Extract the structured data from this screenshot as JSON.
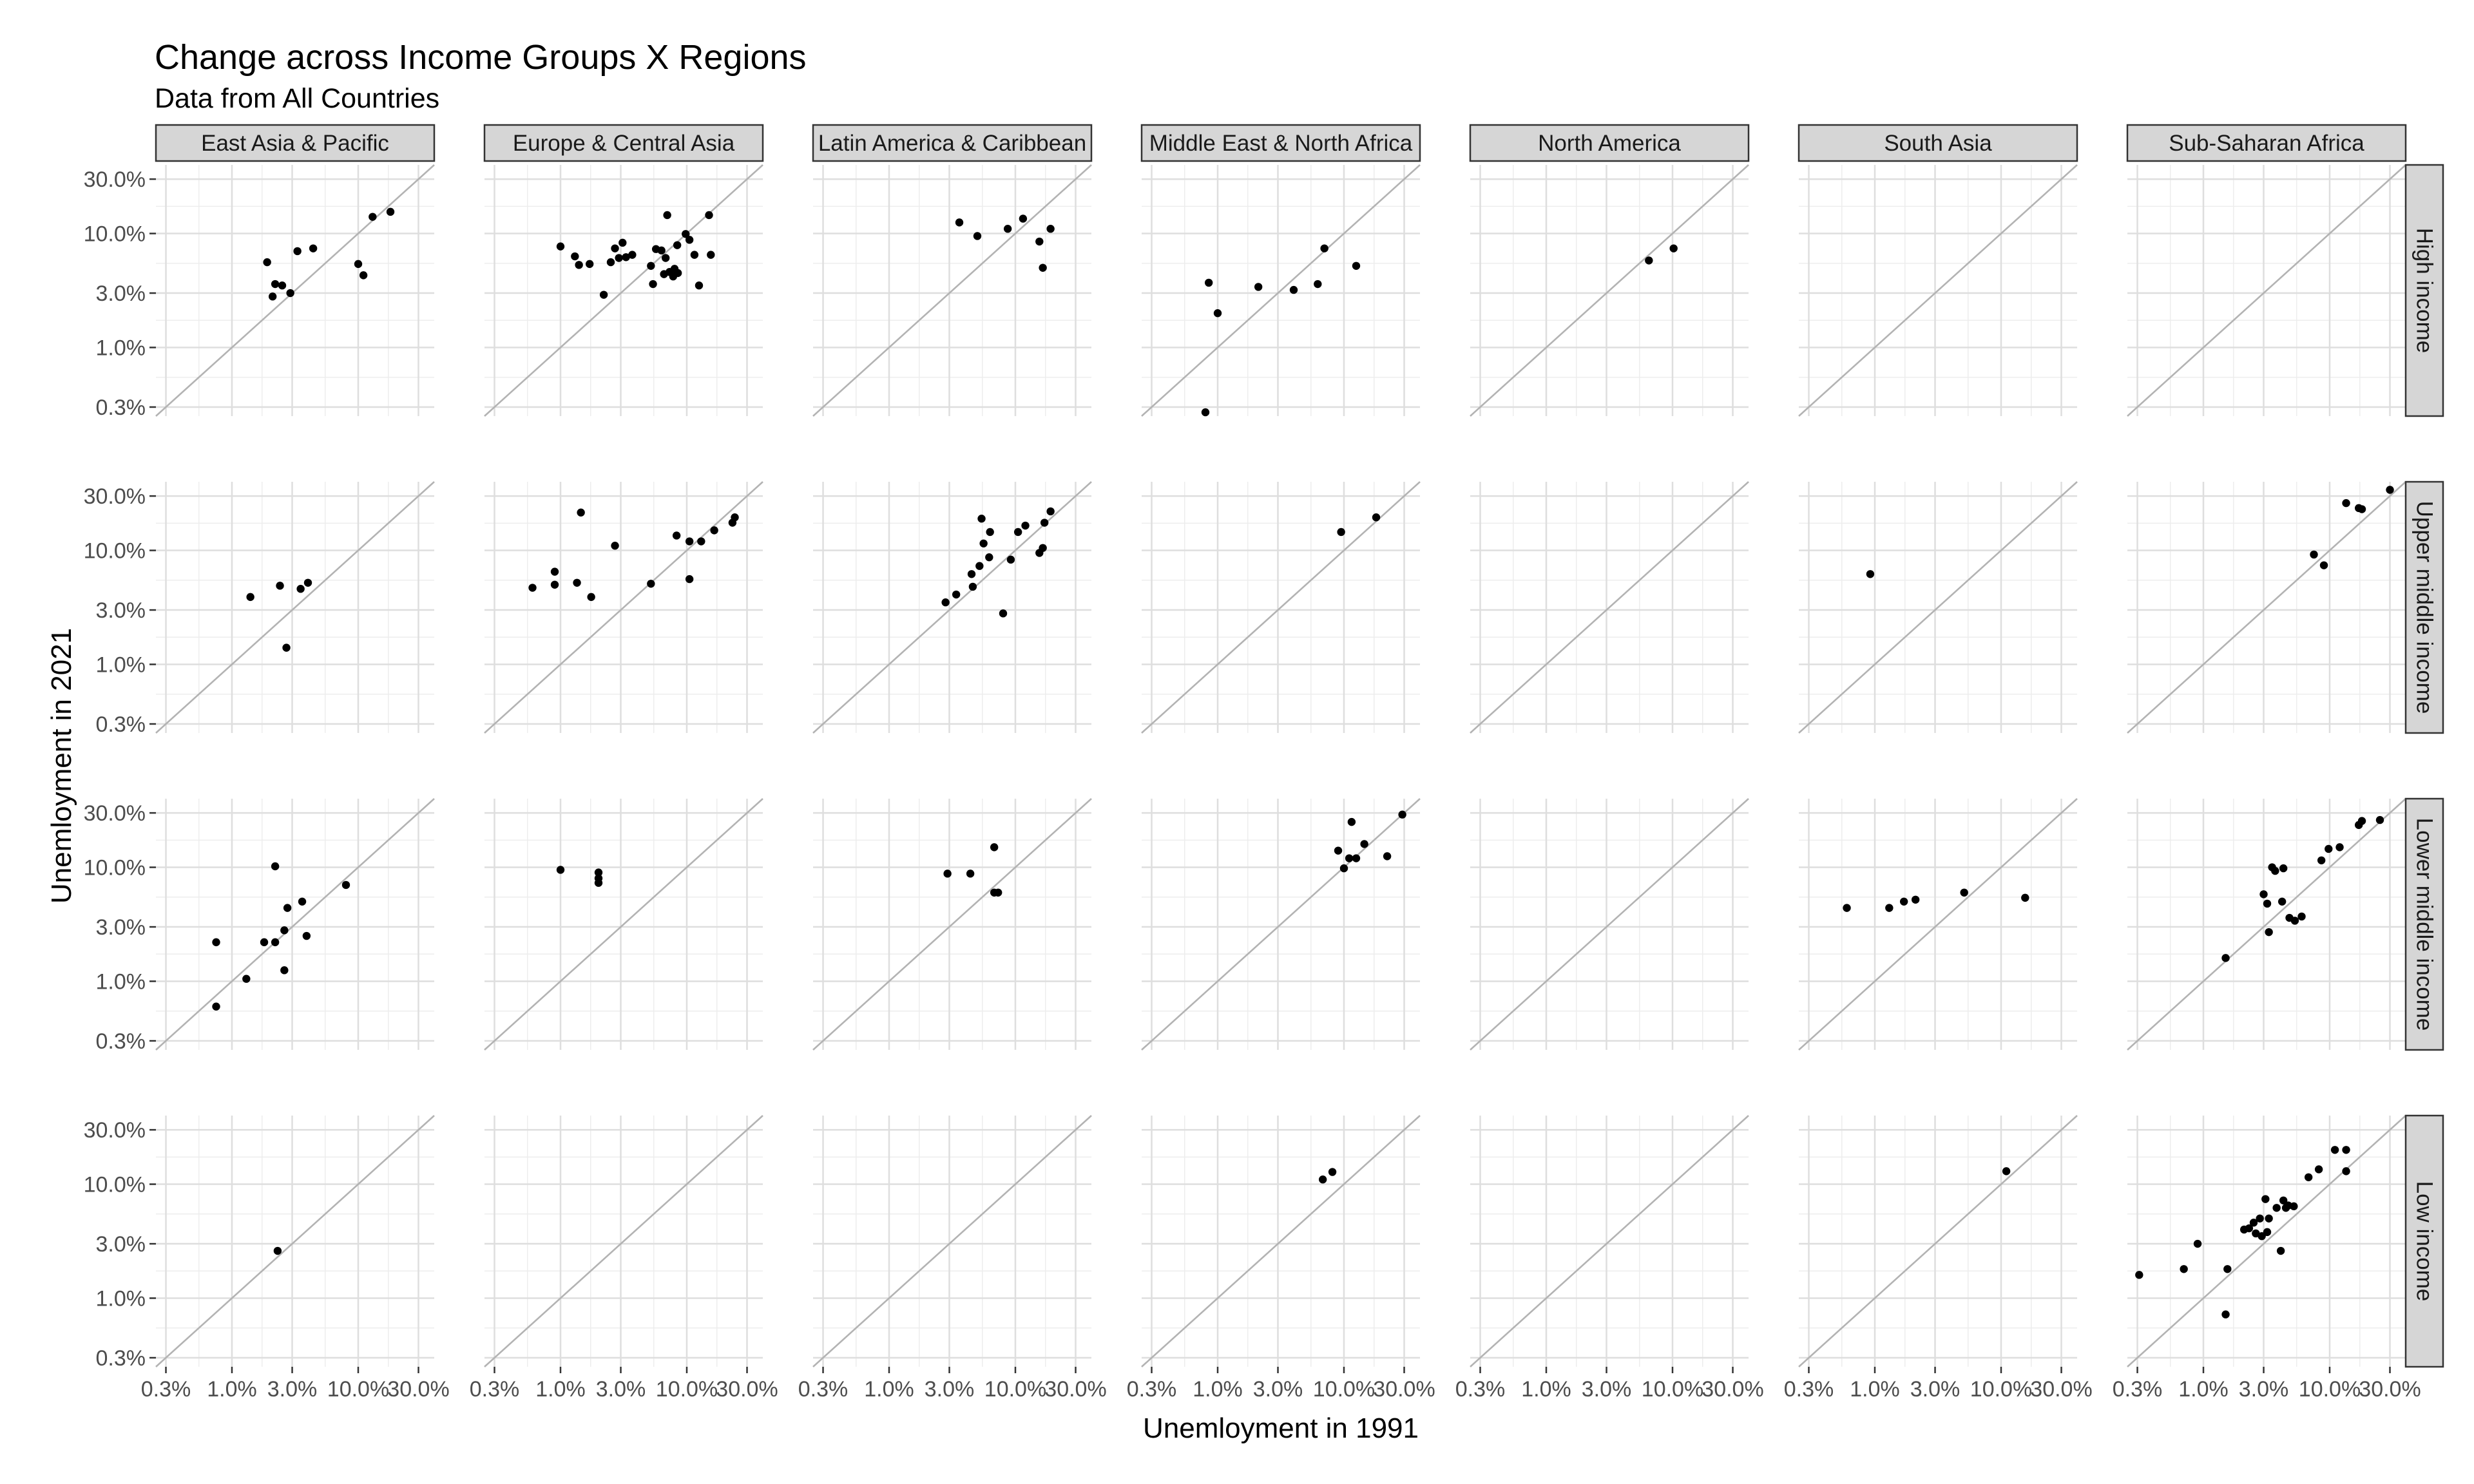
{
  "chart_data": {
    "type": "scatter",
    "title": "Change across Income Groups X Regions",
    "subtitle": "Data from All Countries",
    "xlabel": "Unemloyment in 1991",
    "ylabel": "Unemloyment in 2021",
    "x_scale": "log10",
    "y_scale": "log10",
    "xlim": [
      0.25,
      40
    ],
    "ylim": [
      0.25,
      40
    ],
    "x_ticks": [
      "0.3%",
      "1.0%",
      "3.0%",
      "10.0%",
      "30.0%"
    ],
    "y_ticks": [
      "30.0%",
      "10.0%",
      "3.0%",
      "1.0%",
      "0.3%"
    ],
    "tick_values": [
      0.3,
      1,
      3,
      10,
      30
    ],
    "reference_line": "y = x",
    "grid": true,
    "columns": [
      "East Asia & Pacific",
      "Europe & Central Asia",
      "Latin America & Caribbean",
      "Middle East & North Africa",
      "North America",
      "South Asia",
      "Sub-Saharan Africa"
    ],
    "rows": [
      "High income",
      "Upper middle income",
      "Lower middle income",
      "Low income"
    ],
    "panels": [
      {
        "row": 0,
        "col": 0,
        "points": [
          [
            1.9,
            5.6
          ],
          [
            2.1,
            2.8
          ],
          [
            2.2,
            3.6
          ],
          [
            2.5,
            3.5
          ],
          [
            2.9,
            3.0
          ],
          [
            3.3,
            7.0
          ],
          [
            4.4,
            7.4
          ],
          [
            10,
            5.4
          ],
          [
            11,
            4.3
          ],
          [
            13,
            14
          ],
          [
            18,
            15.5
          ]
        ]
      },
      {
        "row": 0,
        "col": 1,
        "points": [
          [
            1.0,
            7.7
          ],
          [
            1.3,
            6.3
          ],
          [
            1.4,
            5.3
          ],
          [
            1.7,
            5.4
          ],
          [
            2.2,
            2.9
          ],
          [
            2.5,
            5.6
          ],
          [
            2.7,
            7.4
          ],
          [
            2.9,
            6.1
          ],
          [
            3.1,
            8.3
          ],
          [
            3.3,
            6.2
          ],
          [
            3.7,
            6.5
          ],
          [
            5.2,
            5.2
          ],
          [
            5.4,
            3.6
          ],
          [
            5.7,
            7.3
          ],
          [
            6.3,
            7.1
          ],
          [
            6.6,
            4.4
          ],
          [
            6.8,
            6.1
          ],
          [
            7.0,
            14.5
          ],
          [
            7.3,
            4.6
          ],
          [
            7.8,
            4.2
          ],
          [
            8.0,
            4.9
          ],
          [
            8.4,
            7.9
          ],
          [
            8.5,
            4.5
          ],
          [
            9.8,
            9.9
          ],
          [
            10.5,
            8.8
          ],
          [
            11.5,
            6.5
          ],
          [
            12.5,
            3.5
          ],
          [
            15,
            14.5
          ],
          [
            15.5,
            6.5
          ]
        ]
      },
      {
        "row": 0,
        "col": 2,
        "points": [
          [
            3.6,
            12.5
          ],
          [
            5.0,
            9.5
          ],
          [
            8.7,
            11
          ],
          [
            11.5,
            13.5
          ],
          [
            15.5,
            8.5
          ],
          [
            16.5,
            5.0
          ],
          [
            19,
            11
          ]
        ]
      },
      {
        "row": 0,
        "col": 3,
        "points": [
          [
            0.85,
            3.7
          ],
          [
            1.0,
            2.0
          ],
          [
            2.1,
            3.4
          ],
          [
            4.0,
            3.2
          ],
          [
            6.2,
            3.6
          ],
          [
            7.0,
            7.4
          ],
          [
            12.5,
            5.2
          ],
          [
            0.8,
            0.27
          ]
        ]
      },
      {
        "row": 0,
        "col": 4,
        "points": [
          [
            6.5,
            5.8
          ],
          [
            10.2,
            7.4
          ]
        ]
      },
      {
        "row": 1,
        "col": 0,
        "points": [
          [
            1.4,
            3.9
          ],
          [
            2.4,
            4.9
          ],
          [
            2.7,
            1.4
          ],
          [
            3.5,
            4.6
          ],
          [
            4.0,
            5.2
          ]
        ]
      },
      {
        "row": 1,
        "col": 1,
        "points": [
          [
            0.6,
            4.7
          ],
          [
            0.9,
            6.5
          ],
          [
            0.9,
            5.0
          ],
          [
            1.35,
            5.2
          ],
          [
            1.45,
            21.5
          ],
          [
            1.75,
            3.9
          ],
          [
            2.7,
            11
          ],
          [
            5.2,
            5.1
          ],
          [
            8.3,
            13.5
          ],
          [
            10.5,
            5.6
          ],
          [
            10.5,
            12
          ],
          [
            13,
            12
          ],
          [
            16.5,
            15
          ],
          [
            23,
            17.5
          ],
          [
            24,
            19.5
          ]
        ]
      },
      {
        "row": 1,
        "col": 2,
        "points": [
          [
            2.8,
            3.5
          ],
          [
            3.4,
            4.1
          ],
          [
            4.5,
            6.2
          ],
          [
            4.6,
            4.8
          ],
          [
            5.2,
            7.3
          ],
          [
            5.4,
            19
          ],
          [
            5.6,
            11.5
          ],
          [
            6.2,
            8.7
          ],
          [
            6.3,
            14.5
          ],
          [
            8.0,
            2.8
          ],
          [
            9.2,
            8.3
          ],
          [
            10.5,
            14.5
          ],
          [
            12,
            16.5
          ],
          [
            15.5,
            9.5
          ],
          [
            16.5,
            10.5
          ],
          [
            17,
            17.5
          ],
          [
            19,
            22
          ]
        ]
      },
      {
        "row": 1,
        "col": 3,
        "points": [
          [
            9.5,
            14.5
          ],
          [
            18,
            19.5
          ]
        ]
      },
      {
        "row": 1,
        "col": 5,
        "points": [
          [
            0.92,
            6.2
          ]
        ]
      },
      {
        "row": 1,
        "col": 6,
        "points": [
          [
            7.5,
            9.2
          ],
          [
            9.0,
            7.4
          ],
          [
            13.5,
            26
          ],
          [
            17,
            23.5
          ],
          [
            18,
            23
          ],
          [
            30,
            34
          ]
        ]
      },
      {
        "row": 2,
        "col": 0,
        "points": [
          [
            0.75,
            2.2
          ],
          [
            0.75,
            0.6
          ],
          [
            1.3,
            1.05
          ],
          [
            1.8,
            2.2
          ],
          [
            2.2,
            2.2
          ],
          [
            2.2,
            10.2
          ],
          [
            2.6,
            2.8
          ],
          [
            2.6,
            1.25
          ],
          [
            2.75,
            4.4
          ],
          [
            3.6,
            5.0
          ],
          [
            3.9,
            2.5
          ],
          [
            8.0,
            7.0
          ]
        ]
      },
      {
        "row": 2,
        "col": 1,
        "points": [
          [
            1.0,
            9.5
          ],
          [
            2.0,
            9.0
          ],
          [
            2.0,
            8.0
          ],
          [
            2.0,
            7.3
          ]
        ]
      },
      {
        "row": 2,
        "col": 2,
        "points": [
          [
            2.9,
            8.8
          ],
          [
            4.4,
            8.8
          ],
          [
            6.8,
            15
          ],
          [
            6.8,
            6.0
          ],
          [
            7.3,
            6.0
          ]
        ]
      },
      {
        "row": 2,
        "col": 3,
        "points": [
          [
            9.0,
            14
          ],
          [
            10,
            9.8
          ],
          [
            11,
            12
          ],
          [
            11.5,
            25
          ],
          [
            12.5,
            12
          ],
          [
            14.5,
            16
          ],
          [
            22,
            12.5
          ],
          [
            29,
            29
          ]
        ]
      },
      {
        "row": 2,
        "col": 5,
        "points": [
          [
            0.6,
            4.4
          ],
          [
            1.3,
            4.4
          ],
          [
            1.7,
            5.0
          ],
          [
            2.1,
            5.2
          ],
          [
            5.1,
            6.0
          ],
          [
            15.5,
            5.4
          ]
        ]
      },
      {
        "row": 2,
        "col": 6,
        "points": [
          [
            1.5,
            1.6
          ],
          [
            3.0,
            5.8
          ],
          [
            3.2,
            4.8
          ],
          [
            3.3,
            2.7
          ],
          [
            3.5,
            10
          ],
          [
            3.7,
            9.3
          ],
          [
            4.2,
            5.0
          ],
          [
            4.3,
            9.8
          ],
          [
            4.8,
            3.6
          ],
          [
            5.3,
            3.4
          ],
          [
            6.0,
            3.7
          ],
          [
            8.6,
            11.5
          ],
          [
            9.8,
            14.5
          ],
          [
            12,
            15
          ],
          [
            17,
            23.5
          ],
          [
            18,
            25.5
          ],
          [
            25,
            26
          ]
        ]
      },
      {
        "row": 3,
        "col": 0,
        "points": [
          [
            2.3,
            2.6
          ]
        ]
      },
      {
        "row": 3,
        "col": 3,
        "points": [
          [
            6.8,
            11
          ],
          [
            8.1,
            12.8
          ]
        ]
      },
      {
        "row": 3,
        "col": 5,
        "points": [
          [
            11,
            13
          ]
        ]
      },
      {
        "row": 3,
        "col": 6,
        "points": [
          [
            0.31,
            1.6
          ],
          [
            0.7,
            1.8
          ],
          [
            0.9,
            3.0
          ],
          [
            1.5,
            0.72
          ],
          [
            1.55,
            1.8
          ],
          [
            2.1,
            4.0
          ],
          [
            2.3,
            4.1
          ],
          [
            2.5,
            4.6
          ],
          [
            2.6,
            3.7
          ],
          [
            2.8,
            5.0
          ],
          [
            2.9,
            3.5
          ],
          [
            3.1,
            7.4
          ],
          [
            3.2,
            3.8
          ],
          [
            3.3,
            5.0
          ],
          [
            3.8,
            6.2
          ],
          [
            4.1,
            2.6
          ],
          [
            4.3,
            7.2
          ],
          [
            4.5,
            6.2
          ],
          [
            4.7,
            6.5
          ],
          [
            5.2,
            6.4
          ],
          [
            6.8,
            11.5
          ],
          [
            8.2,
            13.5
          ],
          [
            11,
            20
          ],
          [
            13.5,
            20
          ],
          [
            13.5,
            13
          ]
        ]
      }
    ]
  }
}
